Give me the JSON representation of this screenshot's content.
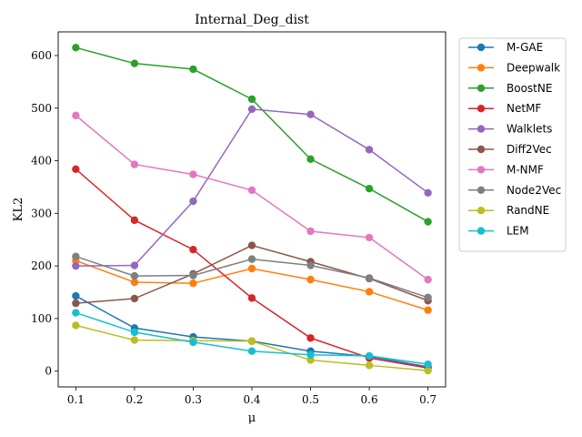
{
  "chart_data": {
    "type": "line",
    "title": "Internal_Deg_dist",
    "xlabel": "μ",
    "ylabel": "KL2",
    "x": [
      0.1,
      0.2,
      0.3,
      0.4,
      0.5,
      0.6,
      0.7
    ],
    "x_tick_labels": [
      "0.1",
      "0.2",
      "0.3",
      "0.4",
      "0.5",
      "0.6",
      "0.7"
    ],
    "y_ticks": [
      0,
      100,
      200,
      300,
      400,
      500,
      600
    ],
    "y_tick_labels": [
      "0",
      "100",
      "200",
      "300",
      "400",
      "500",
      "600"
    ],
    "xlim": [
      0.07,
      0.73
    ],
    "ylim": [
      -30,
      645
    ],
    "grid": false,
    "legend_position": "outside-right",
    "series": [
      {
        "name": "M-GAE",
        "color": "#1f77b4",
        "values": [
          143,
          82,
          65,
          57,
          38,
          28,
          8
        ]
      },
      {
        "name": "Deepwalk",
        "color": "#ff7f0e",
        "values": [
          210,
          169,
          167,
          195,
          174,
          151,
          116
        ]
      },
      {
        "name": "BoostNE",
        "color": "#2ca02c",
        "values": [
          615,
          585,
          574,
          517,
          403,
          347,
          284
        ]
      },
      {
        "name": "NetMF",
        "color": "#d62728",
        "values": [
          384,
          287,
          231,
          139,
          63,
          25,
          6
        ]
      },
      {
        "name": "Walklets",
        "color": "#9467bd",
        "values": [
          200,
          201,
          323,
          498,
          488,
          421,
          339
        ]
      },
      {
        "name": "Diff2Vec",
        "color": "#8c564b",
        "values": [
          129,
          138,
          185,
          239,
          208,
          176,
          134
        ]
      },
      {
        "name": "M-NMF",
        "color": "#e377c2",
        "values": [
          486,
          393,
          374,
          344,
          266,
          254,
          174
        ]
      },
      {
        "name": "Node2Vec",
        "color": "#7f7f7f",
        "values": [
          218,
          181,
          182,
          213,
          201,
          177,
          140
        ]
      },
      {
        "name": "RandNE",
        "color": "#bcbd22",
        "values": [
          87,
          59,
          58,
          57,
          21,
          11,
          1
        ]
      },
      {
        "name": "LEM",
        "color": "#17becf",
        "values": [
          111,
          74,
          55,
          38,
          31,
          29,
          13
        ]
      }
    ]
  }
}
